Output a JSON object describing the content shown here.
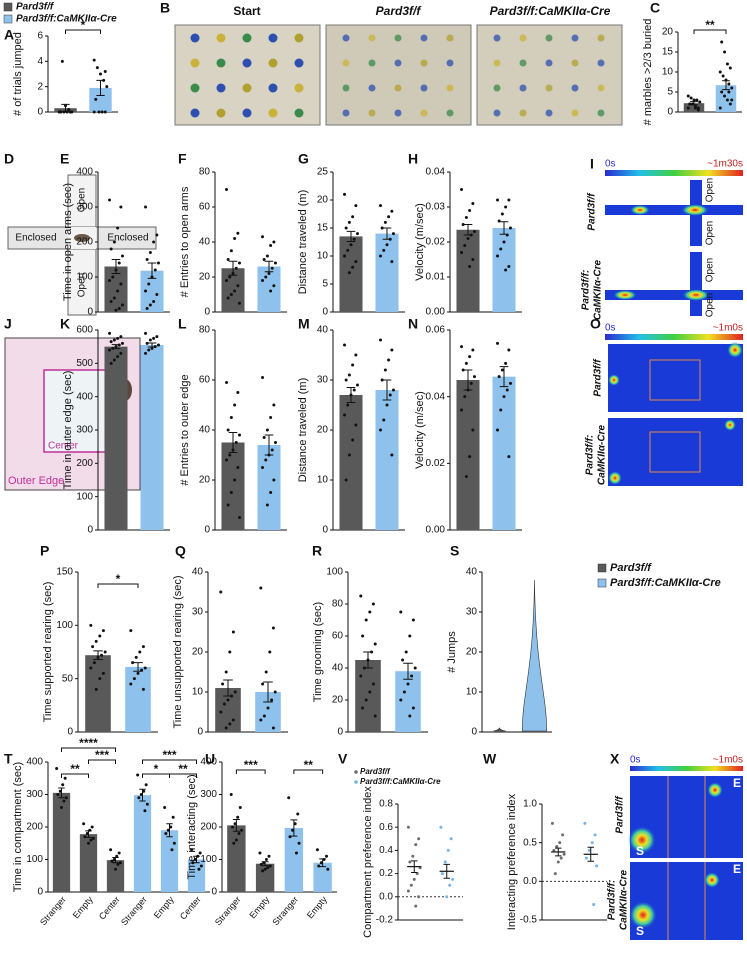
{
  "legend_top": [
    {
      "name": "Pard3f/f",
      "color": "#595959"
    },
    {
      "name": "Pard3f/f:CaMKIIα-Cre",
      "color": "#8ec2ec"
    }
  ],
  "legend_right": [
    {
      "name": "Pard3f/f",
      "color": "#595959"
    },
    {
      "name": "Pard3f/f:CaMKIIα-Cre",
      "color": "#8ec2ec"
    }
  ],
  "panel_b": {
    "panel": "B",
    "titles": [
      "Start",
      "Pard3f/f",
      "Pard3f/f:CaMKIIα-Cre"
    ]
  },
  "panel_d": {
    "panel": "D",
    "labels": [
      "Open",
      "Enclosed",
      "Enclosed",
      "Open"
    ]
  },
  "panel_i": {
    "panel": "I",
    "scale": [
      "0s",
      "~1m30s"
    ],
    "rows": [
      "Pard3f/f",
      "Pard3f/f:",
      "CaMKIIα-Cre"
    ],
    "arms": [
      "Open",
      "Open",
      "Open",
      "Open"
    ]
  },
  "panel_j": {
    "panel": "J",
    "labels": [
      "Center",
      "Outer Edge"
    ]
  },
  "panel_o": {
    "panel": "O",
    "scale": [
      "0s",
      "~1m0s"
    ],
    "rows": [
      "Pard3f/f",
      "Pard3f/f:",
      "CaMKIIα-Cre"
    ]
  },
  "panel_x": {
    "panel": "X",
    "scale": [
      "0s",
      "~1m0s"
    ],
    "rows": [
      "Pard3f/f",
      "Pard3f/f:",
      "CaMKIIα-Cre"
    ],
    "marks": [
      "S",
      "E",
      "S",
      "E"
    ]
  },
  "chart_data": [
    {
      "panel": "A",
      "type": "bar",
      "ylabel": "# of trials jumped",
      "ylim": [
        0,
        6
      ],
      "yticks": [
        0,
        2,
        4,
        6
      ],
      "values": [
        0.3,
        1.9
      ],
      "errors": [
        0.3,
        0.6
      ],
      "points": [
        [
          0,
          0,
          0,
          0,
          0,
          0,
          0.2,
          0.5,
          4
        ],
        [
          0,
          0,
          0,
          0,
          1,
          2,
          2.5,
          3,
          3.5,
          4.1,
          3.2
        ]
      ],
      "significance": [
        "*"
      ]
    },
    {
      "panel": "C",
      "type": "bar",
      "ylabel": "# marbles >2/3 buried",
      "ylim": [
        0,
        20
      ],
      "yticks": [
        0,
        5,
        10,
        15,
        20
      ],
      "values": [
        2.2,
        6.7
      ],
      "errors": [
        0.4,
        1.1
      ],
      "points": [
        [
          1,
          1,
          1.5,
          2,
          2,
          2.5,
          3,
          3,
          3.5,
          4,
          0.5,
          1
        ],
        [
          1,
          2,
          3,
          4,
          5,
          6,
          7,
          8,
          9,
          10,
          11,
          12,
          15,
          17.5,
          3,
          5
        ]
      ],
      "significance": [
        "**"
      ]
    },
    {
      "panel": "E",
      "type": "bar",
      "ylabel": "Time in open arms (sec)",
      "ylim": [
        0,
        400
      ],
      "yticks": [
        0,
        100,
        200,
        300,
        400
      ],
      "values": [
        130,
        118
      ],
      "errors": [
        20,
        22
      ],
      "points": [
        [
          320,
          300,
          240,
          200,
          180,
          160,
          140,
          120,
          100,
          90,
          80,
          60,
          40,
          30,
          20,
          10,
          5
        ],
        [
          300,
          220,
          200,
          170,
          150,
          140,
          120,
          100,
          80,
          60,
          50,
          30,
          20,
          10
        ]
      ]
    },
    {
      "panel": "F",
      "type": "bar",
      "ylabel": "# Entries to open arms",
      "ylim": [
        0,
        80
      ],
      "yticks": [
        0,
        20,
        40,
        60,
        80
      ],
      "values": [
        25,
        26
      ],
      "errors": [
        4,
        3
      ],
      "points": [
        [
          70,
          45,
          42,
          35,
          30,
          28,
          25,
          22,
          20,
          18,
          15,
          12,
          10,
          8,
          5
        ],
        [
          43,
          40,
          38,
          32,
          30,
          28,
          25,
          22,
          20,
          18,
          15,
          12
        ]
      ]
    },
    {
      "panel": "G",
      "type": "bar",
      "ylabel": "Distance traveled (m)",
      "ylim": [
        0,
        25
      ],
      "yticks": [
        0,
        5,
        10,
        15,
        20,
        25
      ],
      "values": [
        13.5,
        14
      ],
      "errors": [
        0.9,
        1
      ],
      "points": [
        [
          21,
          19,
          17,
          16,
          15,
          14,
          13,
          12,
          11,
          10,
          9,
          8,
          7
        ],
        [
          19,
          18,
          17,
          16,
          15,
          14,
          13,
          12,
          11,
          10,
          9
        ]
      ]
    },
    {
      "panel": "H",
      "type": "bar",
      "ylabel": "Velocity (m/sec)",
      "ylim": [
        0,
        0.04
      ],
      "yticks": [
        {
          "value": 0,
          "label": "0.00"
        },
        {
          "value": 0.01,
          "label": "0.01"
        },
        {
          "value": 0.02,
          "label": "0.02"
        },
        {
          "value": 0.03,
          "label": "0.03"
        },
        {
          "value": 0.04,
          "label": "0.04"
        }
      ],
      "values": [
        0.0235,
        0.024
      ],
      "errors": [
        0.0015,
        0.0018
      ],
      "points": [
        [
          0.035,
          0.031,
          0.029,
          0.027,
          0.025,
          0.023,
          0.022,
          0.021,
          0.019,
          0.017,
          0.015,
          0.013
        ],
        [
          0.032,
          0.032,
          0.03,
          0.028,
          0.026,
          0.024,
          0.022,
          0.02,
          0.018,
          0.016,
          0.013,
          0.012
        ]
      ]
    },
    {
      "panel": "K",
      "type": "bar",
      "ylabel": "Time in outer edge (sec)",
      "ylim": [
        0,
        600
      ],
      "yticks": [
        0,
        100,
        200,
        300,
        400,
        500,
        600
      ],
      "values": [
        550,
        555
      ],
      "errors": [
        6,
        6
      ],
      "points": [
        [
          590,
          580,
          575,
          570,
          565,
          560,
          555,
          550,
          545,
          540,
          530,
          520,
          510,
          500
        ],
        [
          590,
          580,
          575,
          570,
          560,
          555,
          550,
          545,
          540,
          530
        ]
      ]
    },
    {
      "panel": "L",
      "type": "bar",
      "ylabel": "# Entries to outer edge",
      "ylim": [
        0,
        80
      ],
      "yticks": [
        0,
        20,
        40,
        60,
        80
      ],
      "values": [
        35,
        34
      ],
      "errors": [
        4,
        4
      ],
      "points": [
        [
          59,
          55,
          50,
          45,
          40,
          38,
          35,
          32,
          30,
          28,
          25,
          20,
          15,
          10,
          5
        ],
        [
          61,
          50,
          45,
          40,
          37,
          35,
          32,
          30,
          28,
          25,
          20,
          15,
          10
        ]
      ]
    },
    {
      "panel": "M",
      "type": "bar",
      "ylabel": "Distance traveled (m)",
      "ylim": [
        0,
        40
      ],
      "yticks": [
        0,
        10,
        20,
        30,
        40
      ],
      "values": [
        27,
        28
      ],
      "errors": [
        1.5,
        2
      ],
      "points": [
        [
          37,
          35,
          33,
          31,
          30,
          29,
          28,
          27,
          25,
          23,
          21,
          18,
          15,
          10
        ],
        [
          38,
          36,
          34,
          32,
          30,
          28,
          27,
          25,
          22,
          20,
          15
        ]
      ]
    },
    {
      "panel": "N",
      "type": "bar",
      "ylabel": "Velocity (m/sec)",
      "ylim": [
        0,
        0.06
      ],
      "yticks": [
        {
          "value": 0,
          "label": "0.00"
        },
        {
          "value": 0.02,
          "label": "0.02"
        },
        {
          "value": 0.04,
          "label": "0.04"
        },
        {
          "value": 0.06,
          "label": "0.06"
        }
      ],
      "values": [
        0.045,
        0.046
      ],
      "errors": [
        0.003,
        0.003
      ],
      "points": [
        [
          0.055,
          0.054,
          0.052,
          0.05,
          0.048,
          0.046,
          0.044,
          0.042,
          0.04,
          0.036,
          0.03,
          0.022,
          0.016
        ],
        [
          0.056,
          0.054,
          0.05,
          0.048,
          0.046,
          0.044,
          0.042,
          0.04,
          0.036,
          0.03,
          0.022
        ]
      ]
    },
    {
      "panel": "P",
      "type": "bar",
      "ylabel": "Time supported rearing (sec)",
      "ylim": [
        0,
        150
      ],
      "yticks": [
        0,
        50,
        100,
        150
      ],
      "values": [
        72,
        61
      ],
      "errors": [
        4,
        4
      ],
      "points": [
        [
          100,
          95,
          90,
          85,
          80,
          75,
          72,
          70,
          65,
          60,
          55,
          50,
          40
        ],
        [
          95,
          80,
          75,
          70,
          65,
          60,
          58,
          55,
          50,
          45,
          40
        ]
      ],
      "significance": [
        "*"
      ]
    },
    {
      "panel": "Q",
      "type": "bar",
      "ylabel": "Time unsupported rearing (sec)",
      "ylim": [
        0,
        40
      ],
      "yticks": [
        0,
        10,
        20,
        30,
        40
      ],
      "values": [
        11,
        10
      ],
      "errors": [
        2,
        2.5
      ],
      "points": [
        [
          35,
          25,
          20,
          15,
          12,
          10,
          9,
          8,
          7,
          5,
          3,
          2,
          1
        ],
        [
          36,
          26,
          20,
          15,
          12,
          10,
          8,
          6,
          4,
          3,
          1
        ]
      ]
    },
    {
      "panel": "R",
      "type": "bar",
      "ylabel": "Time grooming (sec)",
      "ylim": [
        0,
        100
      ],
      "yticks": [
        0,
        20,
        40,
        60,
        80,
        100
      ],
      "values": [
        45,
        38
      ],
      "errors": [
        5,
        5
      ],
      "points": [
        [
          85,
          80,
          75,
          70,
          60,
          55,
          50,
          45,
          40,
          35,
          30,
          25,
          20,
          15,
          10
        ],
        [
          75,
          70,
          60,
          50,
          45,
          40,
          35,
          30,
          25,
          20,
          15,
          10
        ]
      ]
    },
    {
      "panel": "S",
      "type": "violin",
      "ylabel": "# Jumps",
      "ylim": [
        0,
        40
      ],
      "yticks": [
        0,
        10,
        20,
        30,
        40
      ],
      "values": [
        1,
        38
      ]
    },
    {
      "panel": "T",
      "type": "bar",
      "ylabel": "Time in compartment (sec)",
      "ylim": [
        0,
        400
      ],
      "yticks": [
        0,
        100,
        200,
        300,
        400
      ],
      "categories": [
        "Stranger",
        "Empty",
        "Center",
        "Stranger",
        "Empty",
        "Center"
      ],
      "values": [
        305,
        178,
        98,
        298,
        190,
        100
      ],
      "errors": [
        15,
        10,
        8,
        18,
        20,
        10
      ],
      "points": [
        [
          380,
          350,
          330,
          310,
          300,
          290,
          280,
          260
        ],
        [
          210,
          200,
          190,
          180,
          170,
          165,
          160,
          150
        ],
        [
          130,
          120,
          110,
          100,
          95,
          90,
          85,
          70
        ],
        [
          360,
          330,
          310,
          300,
          290,
          270,
          250
        ],
        [
          260,
          230,
          200,
          190,
          180,
          150,
          130
        ],
        [
          130,
          120,
          110,
          100,
          90,
          80,
          70
        ]
      ],
      "significance": [
        "****",
        "***",
        "**",
        "***",
        "*",
        "**"
      ]
    },
    {
      "panel": "U",
      "type": "bar",
      "ylabel": "Time interacting (sec)",
      "ylim": [
        0,
        400
      ],
      "yticks": [
        0,
        100,
        200,
        300,
        400
      ],
      "categories": [
        "Stranger",
        "Empty",
        "Stranger",
        "Empty"
      ],
      "values": [
        205,
        87,
        197,
        90
      ],
      "errors": [
        18,
        6,
        25,
        12
      ],
      "points": [
        [
          300,
          260,
          230,
          210,
          200,
          190,
          180,
          160,
          150
        ],
        [
          120,
          110,
          100,
          90,
          85,
          80,
          75,
          70,
          65
        ],
        [
          290,
          240,
          210,
          190,
          170,
          150,
          120
        ],
        [
          130,
          110,
          100,
          90,
          80,
          70
        ]
      ],
      "significance": [
        "***",
        "**"
      ]
    },
    {
      "panel": "V",
      "type": "dot",
      "ylabel": "Compartment preference index",
      "legend": [
        "Pard3f/f",
        "Pard3f/f:CaMKIIα-Cre"
      ],
      "ylim": [
        -0.2,
        0.8
      ],
      "yticks": [
        {
          "value": -0.2,
          "label": "-0.2"
        },
        {
          "value": 0,
          "label": "0.0"
        },
        0.2,
        0.4,
        0.6,
        0.8
      ],
      "values": [
        0.26,
        0.22
      ],
      "errors": [
        0.05,
        0.06
      ],
      "points": [
        [
          0.6,
          0.5,
          0.45,
          0.35,
          0.3,
          0.25,
          0.2,
          0.15,
          0.1,
          0.05,
          0,
          -0.08
        ],
        [
          0.6,
          0.5,
          0.4,
          0.3,
          0.2,
          0.15,
          0.1,
          0
        ]
      ]
    },
    {
      "panel": "W",
      "type": "dot",
      "ylabel": "Interacting preference index",
      "ylim": [
        -0.5,
        1.0
      ],
      "yticks": [
        {
          "value": -0.5,
          "label": "-0.5"
        },
        {
          "value": 0,
          "label": "0.0"
        },
        0.5,
        {
          "value": 1,
          "label": "1.0"
        }
      ],
      "values": [
        0.38,
        0.35
      ],
      "errors": [
        0.05,
        0.09
      ],
      "points": [
        [
          0.75,
          0.6,
          0.5,
          0.45,
          0.4,
          0.35,
          0.3,
          0.25,
          0.1
        ],
        [
          0.75,
          0.6,
          0.5,
          0.4,
          0.3,
          0.2,
          -0.3
        ]
      ]
    }
  ]
}
